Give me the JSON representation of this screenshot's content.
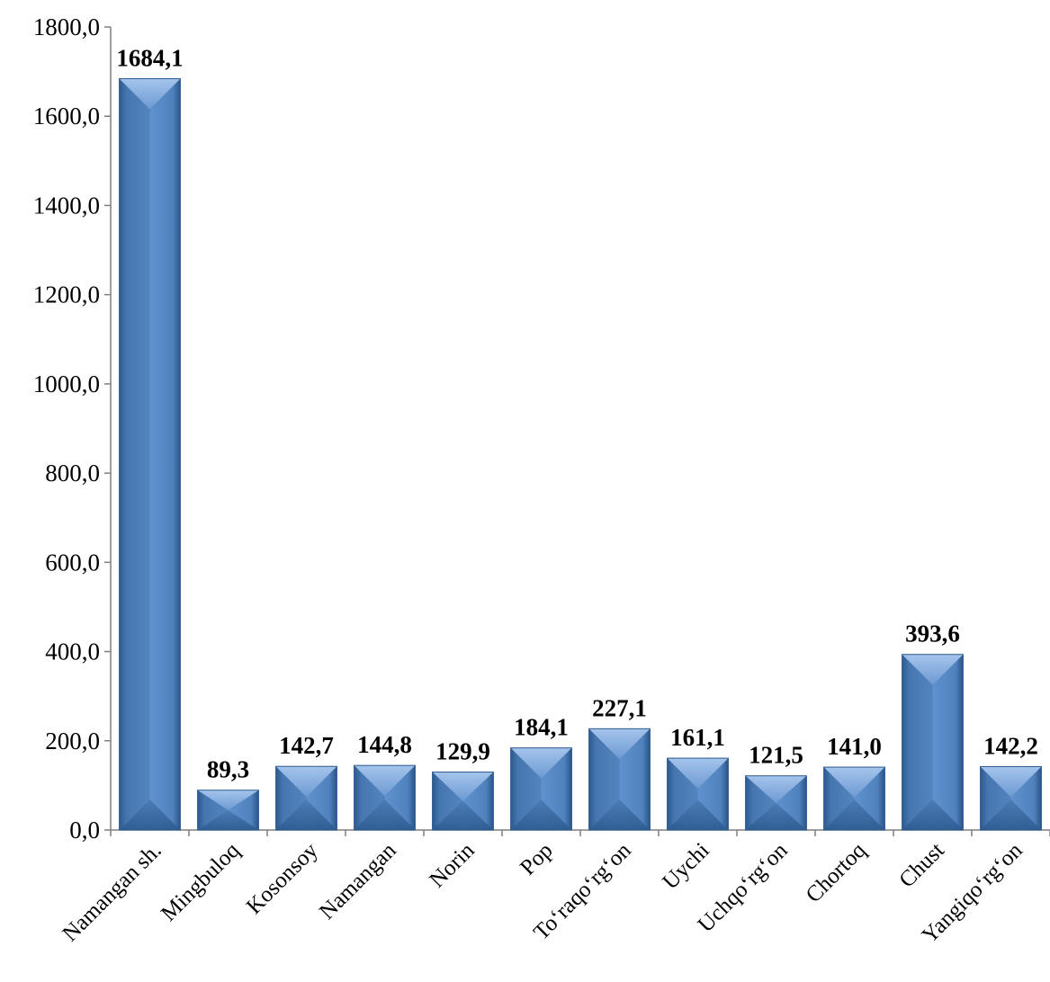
{
  "chart_data": {
    "type": "bar",
    "categories": [
      "Namangan sh.",
      "Mingbuloq",
      "Kosonsoy",
      "Namangan",
      "Norin",
      "Pop",
      "To‘raqo‘rg‘on",
      "Uychi",
      "Uchqo‘rg‘on",
      "Chortoq",
      "Chust",
      "Yangiqo‘rg‘on"
    ],
    "values": [
      1684.1,
      89.3,
      142.7,
      144.8,
      129.9,
      184.1,
      227.1,
      161.1,
      121.5,
      141.0,
      393.6,
      142.2
    ],
    "value_labels": [
      "1684,1",
      "89,3",
      "142,7",
      "144,8",
      "129,9",
      "184,1",
      "227,1",
      "161,1",
      "121,5",
      "141,0",
      "393,6",
      "142,2"
    ],
    "y_ticks": [
      0,
      200,
      400,
      600,
      800,
      1000,
      1200,
      1400,
      1600,
      1800
    ],
    "y_tick_labels": [
      "0,0",
      "200,0",
      "400,0",
      "600,0",
      "800,0",
      "1000,0",
      "1200,0",
      "1400,0",
      "1600,0",
      "1800,0"
    ],
    "ylim": [
      0,
      1800
    ],
    "grid": false,
    "bar_color": "#4f81bd",
    "bar_dark": "#2c5a8f",
    "bar_light": "#8db4e2"
  }
}
